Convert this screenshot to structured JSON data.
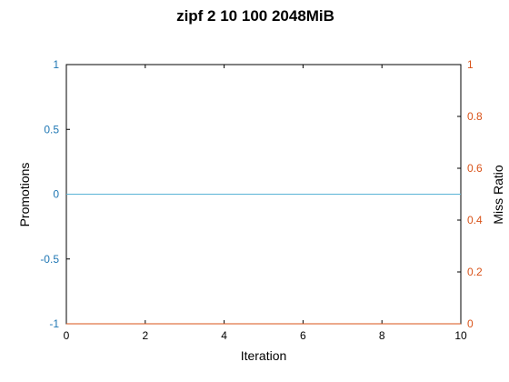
{
  "chart_data": {
    "type": "line",
    "title": "zipf 2 10 100 2048MiB",
    "xlabel": "Iteration",
    "ylabel_left": "Promotions",
    "ylabel_right": "Miss Ratio",
    "xlim": [
      0,
      10
    ],
    "ylim_left": [
      -1,
      1
    ],
    "ylim_right": [
      0,
      1
    ],
    "x_ticks": [
      "0",
      "2",
      "4",
      "6",
      "8",
      "10"
    ],
    "y_left_ticks": [
      "-1",
      "-0.5",
      "0",
      "0.5",
      "1"
    ],
    "y_right_ticks": [
      "0",
      "0.2",
      "0.4",
      "0.6",
      "0.8",
      "1"
    ],
    "grid": false,
    "colors": {
      "left_axis": "#1f77b4",
      "right_axis": "#d95319",
      "promotions_line": "#5ab4d6",
      "miss_ratio_line": "#d95319"
    },
    "series": [
      {
        "axis": "left",
        "x": [
          0,
          10
        ],
        "y": [
          0,
          0
        ]
      },
      {
        "axis": "right",
        "x": [
          0,
          10
        ],
        "y": [
          0,
          0
        ]
      }
    ]
  }
}
